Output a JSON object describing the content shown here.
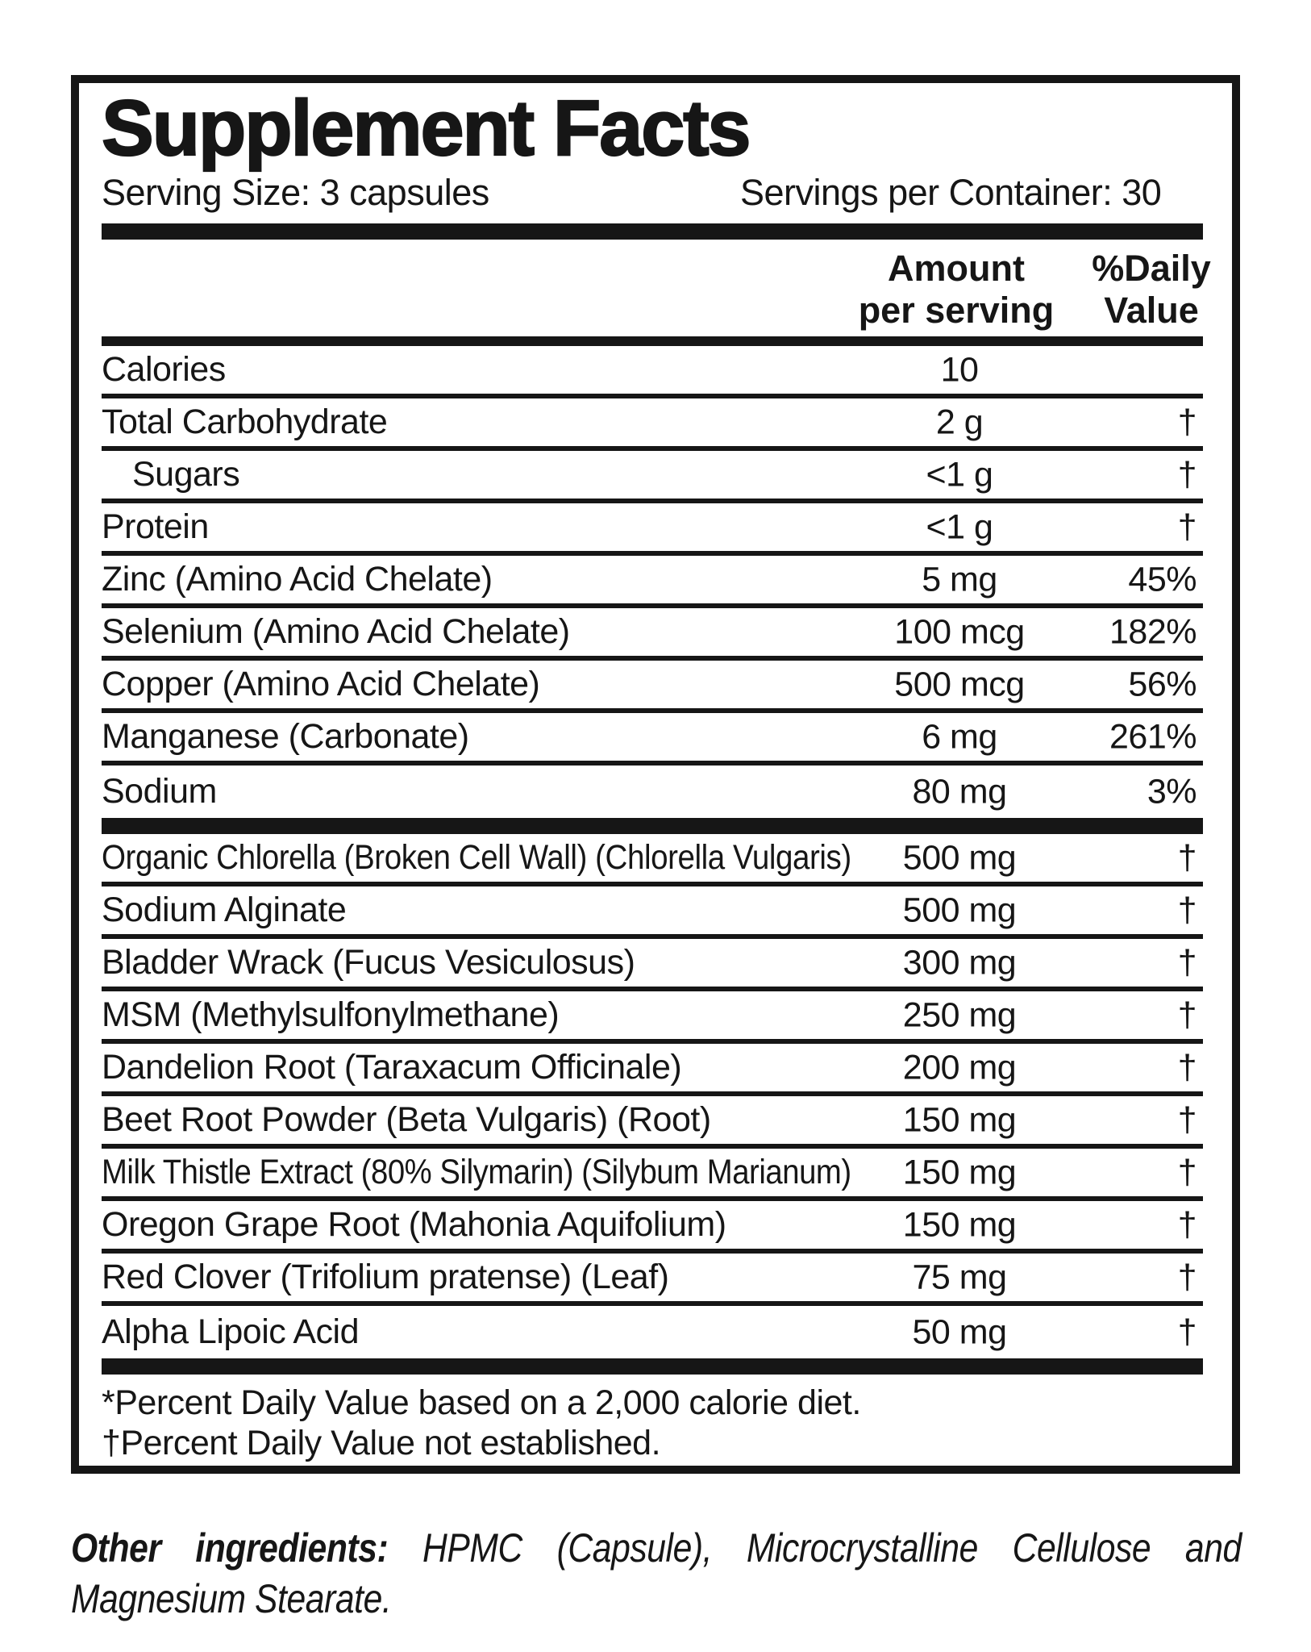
{
  "colors": {
    "ink": "#161616",
    "paper": "#ffffff"
  },
  "label": {
    "title": "Supplement Facts",
    "serving_size": "Serving Size: 3 capsules",
    "servings_per_container": "Servings per Container: 30",
    "columns": {
      "amount_line1": "Amount",
      "amount_line2": "per serving",
      "dv_line1": "%Daily",
      "dv_line2": "Value"
    },
    "nutrients": [
      {
        "name": "Calories",
        "amount": "10",
        "dv": ""
      },
      {
        "name": "Total Carbohydrate",
        "amount": "2 g",
        "dv": "†"
      },
      {
        "name": "Sugars",
        "amount": "<1 g",
        "dv": "†",
        "indent": true
      },
      {
        "name": "Protein",
        "amount": "<1 g",
        "dv": "†"
      },
      {
        "name": "Zinc (Amino Acid Chelate)",
        "amount": "5 mg",
        "dv": "45%"
      },
      {
        "name": "Selenium (Amino Acid Chelate)",
        "amount": "100 mcg",
        "dv": "182%"
      },
      {
        "name": "Copper (Amino Acid Chelate)",
        "amount": "500 mcg",
        "dv": "56%"
      },
      {
        "name": "Manganese (Carbonate)",
        "amount": "6 mg",
        "dv": "261%"
      },
      {
        "name": "Sodium",
        "amount": "80 mg",
        "dv": "3%"
      }
    ],
    "botanicals": [
      {
        "name": "Organic Chlorella (Broken Cell Wall) (Chlorella Vulgaris)",
        "amount": "500 mg",
        "dv": "†"
      },
      {
        "name": "Sodium Alginate",
        "amount": "500 mg",
        "dv": "†"
      },
      {
        "name": "Bladder Wrack (Fucus Vesiculosus)",
        "amount": "300 mg",
        "dv": "†"
      },
      {
        "name": "MSM (Methylsulfonylmethane)",
        "amount": "250 mg",
        "dv": "†"
      },
      {
        "name": "Dandelion Root (Taraxacum Officinale)",
        "amount": "200 mg",
        "dv": "†"
      },
      {
        "name": "Beet Root Powder (Beta Vulgaris) (Root)",
        "amount": "150 mg",
        "dv": "†"
      },
      {
        "name": "Milk Thistle Extract (80% Silymarin) (Silybum Marianum)",
        "amount": "150 mg",
        "dv": "†"
      },
      {
        "name": "Oregon Grape Root (Mahonia Aquifolium)",
        "amount": "150 mg",
        "dv": "†"
      },
      {
        "name": "Red Clover (Trifolium pratense) (Leaf)",
        "amount": "75 mg",
        "dv": "†"
      },
      {
        "name": "Alpha Lipoic Acid",
        "amount": "50 mg",
        "dv": "†"
      }
    ],
    "footnotes": [
      "*Percent Daily Value based on a 2,000 calorie diet.",
      "†Percent Daily Value not established."
    ]
  },
  "other_ingredients": {
    "lead": "Other ingredients:",
    "text": "HPMC (Capsule), Microcrystalline Cellulose and Magnesium Stearate."
  }
}
